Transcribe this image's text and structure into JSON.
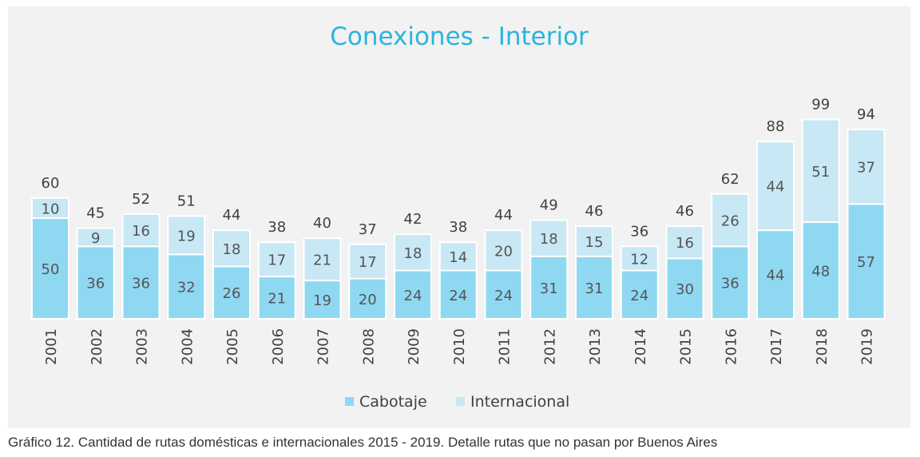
{
  "chart_data": {
    "type": "bar",
    "stacked": true,
    "title": "Conexiones - Interior",
    "categories": [
      "2001",
      "2002",
      "2003",
      "2004",
      "2005",
      "2006",
      "2007",
      "2008",
      "2009",
      "2010",
      "2011",
      "2012",
      "2013",
      "2014",
      "2015",
      "2016",
      "2017",
      "2018",
      "2019"
    ],
    "series": [
      {
        "name": "Cabotaje",
        "color": "#8fd8f2",
        "values": [
          50,
          36,
          36,
          32,
          26,
          21,
          19,
          20,
          24,
          24,
          24,
          31,
          31,
          24,
          30,
          36,
          44,
          48,
          57
        ]
      },
      {
        "name": "Internacional",
        "color": "#c7e8f4",
        "values": [
          10,
          9,
          16,
          19,
          18,
          17,
          21,
          17,
          18,
          14,
          20,
          18,
          15,
          12,
          16,
          26,
          44,
          51,
          37
        ]
      }
    ],
    "totals": [
      60,
      45,
      52,
      51,
      44,
      38,
      40,
      37,
      42,
      38,
      44,
      49,
      46,
      36,
      46,
      62,
      88,
      99,
      94
    ],
    "legend_position": "bottom",
    "grid": false,
    "colors": {
      "title": "#29b5e0",
      "background": "#f2f2f2",
      "label_text": "#555555",
      "total_text": "#404040"
    }
  },
  "caption": "Gráfico 12. Cantidad de rutas domésticas e internacionales 2015 - 2019. Detalle rutas que no pasan por Buenos Aires"
}
